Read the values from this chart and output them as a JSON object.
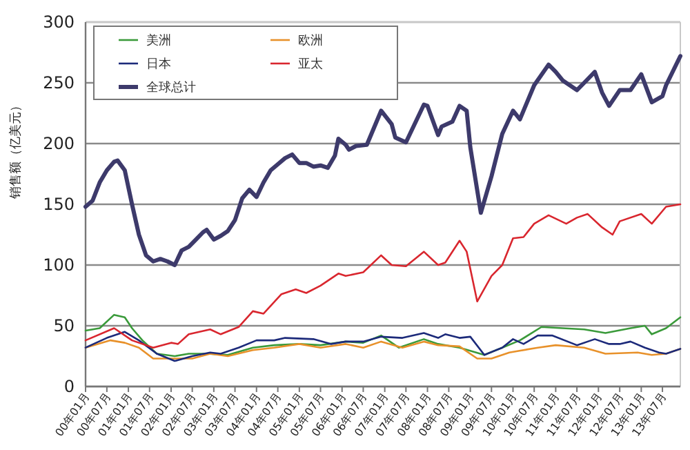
{
  "chart_data": {
    "type": "line",
    "ylabel": "销售额（亿美元）",
    "xlim": [
      "2000-01",
      "2013-12"
    ],
    "ylim": [
      0,
      300
    ],
    "yticks": [
      0,
      50,
      100,
      150,
      200,
      250,
      300
    ],
    "grid": "y",
    "legend": "top left",
    "marker": "none",
    "line_style": "solid",
    "xticks": [
      {
        "value": "2000-01",
        "label": "00年01月"
      },
      {
        "value": "2000-07",
        "label": "00年07月"
      },
      {
        "value": "2001-01",
        "label": "01年01月"
      },
      {
        "value": "2001-07",
        "label": "01年07月"
      },
      {
        "value": "2002-01",
        "label": "02年01月"
      },
      {
        "value": "2002-07",
        "label": "02年07月"
      },
      {
        "value": "2003-01",
        "label": "03年01月"
      },
      {
        "value": "2003-07",
        "label": "03年07月"
      },
      {
        "value": "2004-01",
        "label": "04年01月"
      },
      {
        "value": "2004-07",
        "label": "04年07月"
      },
      {
        "value": "2005-01",
        "label": "05年01月"
      },
      {
        "value": "2005-07",
        "label": "05年07月"
      },
      {
        "value": "2006-01",
        "label": "06年01月"
      },
      {
        "value": "2006-07",
        "label": "06年07月"
      },
      {
        "value": "2007-01",
        "label": "07年01月"
      },
      {
        "value": "2007-07",
        "label": "07年07月"
      },
      {
        "value": "2008-01",
        "label": "08年01月"
      },
      {
        "value": "2008-07",
        "label": "08年07月"
      },
      {
        "value": "2009-01",
        "label": "09年01月"
      },
      {
        "value": "2009-07",
        "label": "09年07月"
      },
      {
        "value": "2010-01",
        "label": "10年01月"
      },
      {
        "value": "2010-07",
        "label": "10年07月"
      },
      {
        "value": "2011-01",
        "label": "11年01月"
      },
      {
        "value": "2011-07",
        "label": "11年07月"
      },
      {
        "value": "2012-01",
        "label": "12年01月"
      },
      {
        "value": "2012-07",
        "label": "12年07月"
      },
      {
        "value": "2013-01",
        "label": "13年01月"
      },
      {
        "value": "2013-07",
        "label": "13年07月"
      }
    ],
    "series": [
      {
        "name": "美洲",
        "color": "#3a9a3a",
        "x": [
          "2000-01",
          "2000-05",
          "2000-09",
          "2000-12",
          "2001-02",
          "2001-05",
          "2001-09",
          "2002-02",
          "2002-06",
          "2002-11",
          "2003-05",
          "2003-12",
          "2004-06",
          "2005-01",
          "2005-07",
          "2006-02",
          "2006-07",
          "2006-12",
          "2007-05",
          "2007-12",
          "2008-04",
          "2008-10",
          "2009-05",
          "2009-10",
          "2010-03",
          "2010-09",
          "2011-03",
          "2011-09",
          "2012-03",
          "2012-10",
          "2013-02",
          "2013-04",
          "2013-08",
          "2013-12"
        ],
        "values": [
          46,
          48,
          59,
          57,
          48,
          38,
          27,
          25,
          27,
          27,
          26,
          32,
          34,
          35,
          34,
          37,
          36,
          42,
          32,
          39,
          35,
          32,
          26,
          32,
          38,
          49,
          48,
          47,
          44,
          48,
          50,
          43,
          48,
          57
        ]
      },
      {
        "name": "欧洲",
        "color": "#e8912a",
        "x": [
          "2000-01",
          "2000-08",
          "2000-12",
          "2001-04",
          "2001-08",
          "2002-01",
          "2002-07",
          "2002-12",
          "2003-05",
          "2003-12",
          "2004-06",
          "2005-01",
          "2005-07",
          "2006-02",
          "2006-07",
          "2006-12",
          "2007-06",
          "2007-12",
          "2008-04",
          "2008-10",
          "2009-03",
          "2009-07",
          "2009-12",
          "2010-08",
          "2011-01",
          "2011-09",
          "2012-03",
          "2012-12",
          "2013-04",
          "2013-08",
          "2013-12"
        ],
        "values": [
          32,
          38,
          36,
          32,
          23,
          23,
          23,
          27,
          25,
          30,
          32,
          35,
          32,
          35,
          32,
          37,
          32,
          37,
          34,
          33,
          23,
          23,
          28,
          32,
          34,
          32,
          27,
          28,
          26,
          27,
          31
        ]
      },
      {
        "name": "日本",
        "color": "#1c2a7a",
        "x": [
          "2000-01",
          "2000-07",
          "2000-12",
          "2001-04",
          "2001-09",
          "2002-02",
          "2002-07",
          "2002-12",
          "2003-03",
          "2003-08",
          "2004-01",
          "2004-06",
          "2004-09",
          "2005-05",
          "2005-10",
          "2006-02",
          "2006-07",
          "2006-12",
          "2007-06",
          "2007-12",
          "2008-04",
          "2008-06",
          "2008-10",
          "2009-01",
          "2009-05",
          "2009-10",
          "2010-01",
          "2010-04",
          "2010-08",
          "2010-12",
          "2011-07",
          "2011-12",
          "2012-04",
          "2012-07",
          "2012-10",
          "2013-02",
          "2013-06",
          "2013-08",
          "2013-12"
        ],
        "values": [
          32,
          40,
          45,
          38,
          27,
          21,
          25,
          28,
          27,
          32,
          38,
          38,
          40,
          39,
          35,
          37,
          37,
          41,
          40,
          44,
          40,
          43,
          40,
          41,
          26,
          32,
          39,
          35,
          42,
          42,
          34,
          39,
          35,
          35,
          37,
          32,
          28,
          27,
          31
        ]
      },
      {
        "name": "亚太",
        "color": "#d9262e",
        "x": [
          "2000-01",
          "2000-09",
          "2001-02",
          "2001-08",
          "2002-01",
          "2002-03",
          "2002-06",
          "2002-12",
          "2003-03",
          "2003-08",
          "2003-12",
          "2004-03",
          "2004-08",
          "2004-12",
          "2005-03",
          "2005-07",
          "2005-12",
          "2006-02",
          "2006-07",
          "2006-12",
          "2007-03",
          "2007-07",
          "2007-12",
          "2008-04",
          "2008-06",
          "2008-10",
          "2008-12",
          "2009-03",
          "2009-07",
          "2009-10",
          "2010-01",
          "2010-04",
          "2010-07",
          "2010-11",
          "2011-04",
          "2011-07",
          "2011-10",
          "2012-02",
          "2012-05",
          "2012-07",
          "2013-01",
          "2013-04",
          "2013-08",
          "2013-12"
        ],
        "values": [
          38,
          48,
          38,
          32,
          36,
          35,
          43,
          47,
          43,
          49,
          62,
          60,
          76,
          80,
          77,
          83,
          93,
          91,
          94,
          108,
          100,
          99,
          111,
          100,
          102,
          120,
          111,
          70,
          91,
          100,
          122,
          123,
          134,
          141,
          134,
          139,
          142,
          131,
          125,
          136,
          142,
          134,
          148,
          150
        ]
      },
      {
        "name": "全球总计",
        "color": "#3d3a6b",
        "x": [
          "2000-01",
          "2000-03",
          "2000-05",
          "2000-07",
          "2000-09",
          "2000-10",
          "2000-12",
          "2001-02",
          "2001-04",
          "2001-06",
          "2001-08",
          "2001-10",
          "2001-12",
          "2002-02",
          "2002-04",
          "2002-06",
          "2002-08",
          "2002-10",
          "2002-11",
          "2003-01",
          "2003-03",
          "2003-05",
          "2003-07",
          "2003-09",
          "2003-11",
          "2004-01",
          "2004-03",
          "2004-05",
          "2004-07",
          "2004-09",
          "2004-11",
          "2005-01",
          "2005-03",
          "2005-05",
          "2005-07",
          "2005-09",
          "2005-11",
          "2005-12",
          "2006-02",
          "2006-03",
          "2006-05",
          "2006-08",
          "2006-12",
          "2007-03",
          "2007-04",
          "2007-07",
          "2007-12",
          "2008-01",
          "2008-04",
          "2008-05",
          "2008-08",
          "2008-10",
          "2008-12",
          "2009-01",
          "2009-04",
          "2009-07",
          "2009-10",
          "2010-01",
          "2010-03",
          "2010-07",
          "2010-11",
          "2011-01",
          "2011-03",
          "2011-05",
          "2011-07",
          "2011-09",
          "2011-12",
          "2012-02",
          "2012-04",
          "2012-07",
          "2012-10",
          "2013-01",
          "2013-04",
          "2013-07",
          "2013-08",
          "2013-12"
        ],
        "values": [
          148,
          153,
          168,
          178,
          185,
          186,
          178,
          150,
          125,
          108,
          103,
          105,
          103,
          100,
          112,
          115,
          121,
          127,
          129,
          121,
          124,
          128,
          137,
          155,
          162,
          156,
          168,
          178,
          183,
          188,
          191,
          184,
          184,
          181,
          182,
          180,
          190,
          204,
          199,
          195,
          198,
          199,
          227,
          216,
          205,
          201,
          232,
          231,
          207,
          214,
          218,
          231,
          227,
          197,
          143,
          173,
          208,
          227,
          220,
          248,
          265,
          259,
          252,
          248,
          244,
          250,
          259,
          242,
          231,
          244,
          244,
          257,
          234,
          239,
          248,
          272
        ]
      }
    ]
  }
}
